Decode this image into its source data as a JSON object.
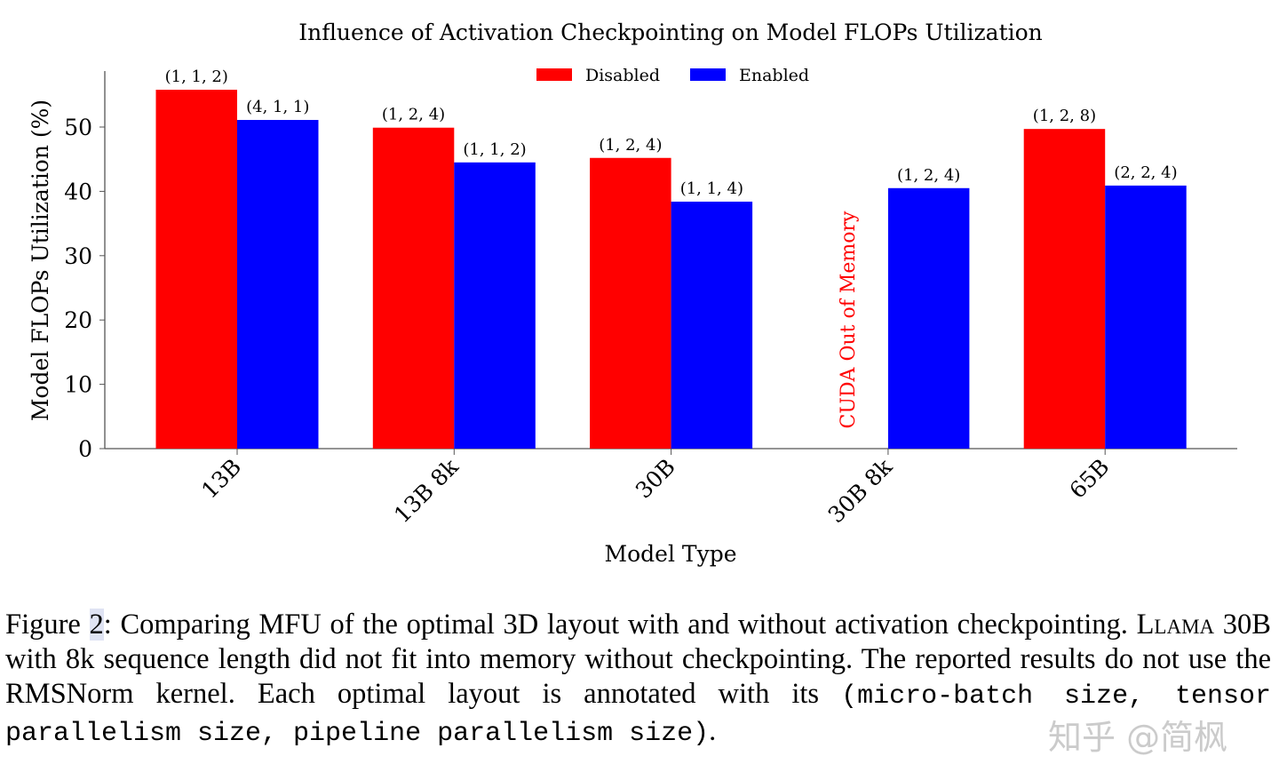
{
  "chart_data": {
    "type": "bar",
    "title": "Influence of Activation Checkpointing on Model FLOPs Utilization",
    "xlabel": "Model Type",
    "ylabel": "Model FLOPs Utilization (%)",
    "ylim": [
      0,
      58
    ],
    "yticks": [
      0,
      10,
      20,
      30,
      40,
      50
    ],
    "categories": [
      "13B",
      "13B 8k",
      "30B",
      "30B 8k",
      "65B"
    ],
    "series": [
      {
        "name": "Disabled",
        "color": "#ff0000",
        "values": [
          55.8,
          49.9,
          45.2,
          null,
          49.7
        ],
        "labels": [
          "(1, 1, 2)",
          "(1, 2, 4)",
          "(1, 2, 4)",
          null,
          "(1, 2, 8)"
        ]
      },
      {
        "name": "Enabled",
        "color": "#0000ff",
        "values": [
          51.1,
          44.5,
          38.4,
          40.5,
          40.9
        ],
        "labels": [
          "(4, 1, 1)",
          "(1, 1, 2)",
          "(1, 1, 4)",
          "(1, 2, 4)",
          "(2, 2, 4)"
        ]
      }
    ],
    "annotation": {
      "text": "CUDA Out of Memory",
      "category": "30B 8k",
      "color": "#ff0000"
    },
    "legend": "top-center",
    "grid": false
  },
  "caption": {
    "figure_label": "Figure ",
    "figure_number": "2",
    "part1": ": Comparing MFU of the optimal 3D layout with and without activation checkpointing. ",
    "llama": "Llama",
    "part2": " 30B with 8k sequence length did not fit into memory without checkpointing. The reported results do not use the RMSNorm kernel. Each optimal layout is annotated with its ",
    "mono": "(micro-batch size, tensor parallelism size, pipeline parallelism size)",
    "end": "."
  },
  "watermark": "知乎 @简枫"
}
